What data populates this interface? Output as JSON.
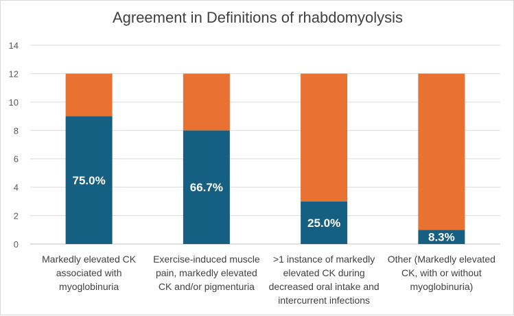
{
  "chart_data": {
    "type": "bar",
    "stacked": true,
    "title": "Agreement in Definitions of rhabdomyolysis",
    "categories": [
      "Markedly elevated CK associated with myoglobinuria",
      "Exercise-induced muscle pain, markedly elevated CK and/or pigmenturia",
      ">1 instance of markedly elevated CK during decreased oral intake and intercurrent infections",
      "Other (Markedly elevated CK, with or without myoglobinuria)"
    ],
    "category_lines": [
      [
        "Markedly elevated CK",
        "associated with",
        "myoglobinuria"
      ],
      [
        "Exercise-induced muscle",
        "pain, markedly elevated",
        "CK and/or pigmenturia"
      ],
      [
        ">1 instance of markedly",
        "elevated CK during",
        "decreased oral intake and",
        "intercurrent infections"
      ],
      [
        "Other (Markedly elevated",
        "CK, with or without",
        "myoglobinuria)"
      ]
    ],
    "series": [
      {
        "values": [
          9,
          8,
          3,
          1
        ],
        "color": "#156082",
        "labels": [
          "75.0%",
          "66.7%",
          "25.0%",
          "8.3%"
        ]
      },
      {
        "values": [
          3,
          4,
          9,
          11
        ],
        "color": "#e97132"
      }
    ],
    "ylim": [
      0,
      14
    ],
    "yticks": [
      "0",
      "2",
      "4",
      "6",
      "8",
      "10",
      "12",
      "14"
    ],
    "grid": true,
    "xlabel": "",
    "ylabel": ""
  }
}
